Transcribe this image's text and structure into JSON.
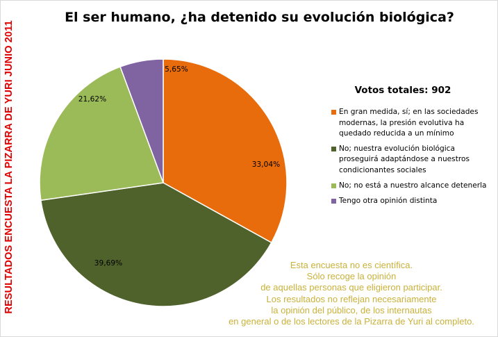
{
  "side_label": "RESULTADOS ENCUESTA LA PIZARRA DE YURI JUNIO 2011",
  "votes_total": "Votos totales: 902",
  "disclaimer": [
    "Esta encuesta no es científica.",
    "Sólo recoge la opinión",
    "de aquellas personas que eligieron participar.",
    "Los resultados no reflejan necesariamente",
    "la opinión del público, de los internautas",
    "en general o de los lectores de la Pizarra de Yuri al completo."
  ],
  "chart_data": {
    "type": "pie",
    "title": "El ser humano, ¿ha detenido su evolución biológica?",
    "legend_position": "right",
    "slices": [
      {
        "label": "En gran medida, sí; en las sociedades modernas, la presión evolutiva ha quedado reducida a un mínimo",
        "legend_lines": [
          "En gran medida, sí; en las sociedades",
          "modernas, la presión evolutiva ha",
          "quedado reducida a un mínimo"
        ],
        "value": 33.04,
        "value_label": "33,04%",
        "color": "#e96c0c"
      },
      {
        "label": "No; nuestra evolución biológica proseguirá adaptándose a nuestros condicionantes sociales",
        "legend_lines": [
          "No; nuestra evolución biológica",
          "proseguirá adaptándose a nuestros",
          "condicionantes sociales"
        ],
        "value": 39.69,
        "value_label": "39,69%",
        "color": "#4f622b"
      },
      {
        "label": "No; no está a nuestro alcance detenerla",
        "legend_lines": [
          "No; no está a nuestro alcance detenerla"
        ],
        "value": 21.62,
        "value_label": "21,62%",
        "color": "#9bbb59"
      },
      {
        "label": "Tengo otra opinión distinta",
        "legend_lines": [
          "Tengo otra opinión distinta"
        ],
        "value": 5.65,
        "value_label": "5,65%",
        "color": "#8064a2"
      }
    ]
  }
}
